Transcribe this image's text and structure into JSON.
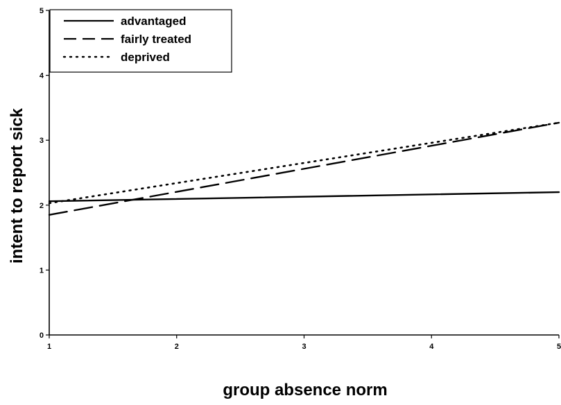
{
  "chart_data": {
    "type": "line",
    "title": "",
    "xlabel": "group absence norm",
    "ylabel": "intent to report sick",
    "xlim": [
      1,
      5
    ],
    "ylim": [
      0,
      5
    ],
    "x_ticks": [
      1,
      2,
      3,
      4,
      5
    ],
    "y_ticks": [
      0,
      1,
      2,
      3,
      4,
      5
    ],
    "grid": false,
    "legend_position": "top-left",
    "x": [
      1,
      5
    ],
    "series": [
      {
        "name": "advantaged",
        "style": "solid",
        "color": "#000000",
        "values": [
          2.06,
          2.2
        ]
      },
      {
        "name": "fairly treated",
        "style": "dashed",
        "color": "#000000",
        "values": [
          1.85,
          3.27
        ]
      },
      {
        "name": "deprived",
        "style": "dotted",
        "color": "#000000",
        "values": [
          2.03,
          3.27
        ]
      }
    ]
  }
}
